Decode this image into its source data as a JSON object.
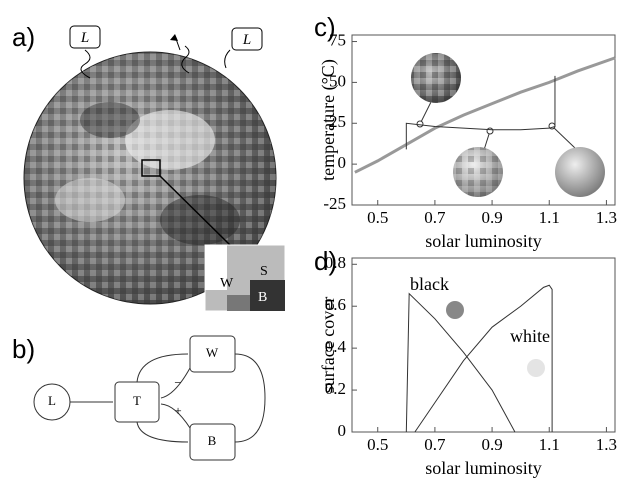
{
  "panels": {
    "a": "a)",
    "b": "b)",
    "c": "c)",
    "d": "d)"
  },
  "sphere": {
    "lamp_labels": [
      "L",
      "L"
    ],
    "inset_labels": [
      "W",
      "S",
      "B"
    ]
  },
  "diagram": {
    "nodes": [
      "L",
      "T",
      "W",
      "B"
    ],
    "signs": [
      "−",
      "+"
    ]
  },
  "chart_data": [
    {
      "type": "line",
      "xlabel": "solar luminosity",
      "ylabel": "temperature (°C)",
      "xlim": [
        0.41,
        1.33
      ],
      "ylim": [
        -25,
        79
      ],
      "xticks": [
        0.5,
        0.7,
        0.9,
        1.1,
        1.3
      ],
      "yticks": [
        -25,
        0,
        25,
        50,
        75
      ],
      "series": [
        {
          "color": "#999999",
          "width": 3,
          "x": [
            0.42,
            0.5,
            0.6,
            0.7,
            0.8,
            0.9,
            1.0,
            1.1,
            1.2,
            1.33
          ],
          "values": [
            -5,
            2,
            12,
            22,
            30,
            37,
            44,
            50,
            57,
            65
          ]
        },
        {
          "color": "#333333",
          "width": 1,
          "x": [
            0.6,
            0.6,
            0.7,
            0.8,
            0.9,
            1.0,
            1.1,
            1.12,
            1.12
          ],
          "values": [
            9,
            25,
            23,
            22,
            21,
            21,
            22,
            23,
            54
          ]
        }
      ]
    },
    {
      "type": "line",
      "xlabel": "solar luminosity",
      "ylabel": "surface cover",
      "xlim": [
        0.41,
        1.33
      ],
      "ylim": [
        0,
        0.83
      ],
      "xticks": [
        0.5,
        0.7,
        0.9,
        1.1,
        1.3
      ],
      "yticks": [
        0,
        0.2,
        0.4,
        0.6,
        0.8
      ],
      "annotations": [
        "black",
        "white"
      ],
      "series": [
        {
          "color": "#333333",
          "width": 1,
          "x": [
            0.6,
            0.61,
            0.7,
            0.8,
            0.9,
            0.98
          ],
          "values": [
            0,
            0.66,
            0.54,
            0.38,
            0.2,
            0
          ]
        },
        {
          "color": "#333333",
          "width": 1,
          "x": [
            0.63,
            0.7,
            0.8,
            0.9,
            1.0,
            1.08,
            1.1,
            1.11,
            1.11
          ],
          "values": [
            0,
            0.14,
            0.34,
            0.5,
            0.6,
            0.69,
            0.7,
            0.68,
            0
          ]
        }
      ]
    }
  ]
}
